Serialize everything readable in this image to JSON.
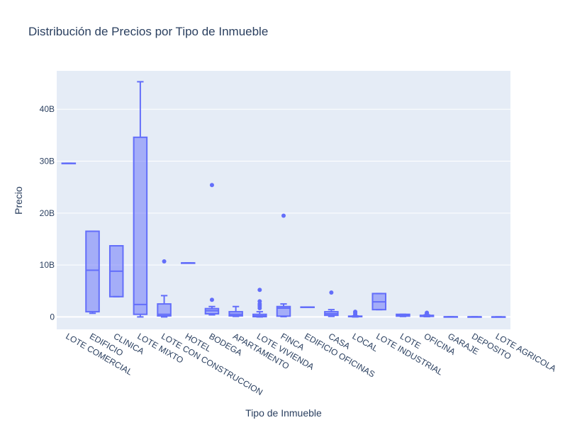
{
  "chart_data": {
    "type": "box",
    "title": "Distribución de Precios por Tipo de Inmueble",
    "xlabel": "Tipo de Inmueble",
    "ylabel": "Precio",
    "ylim": [
      -2400000000,
      47400000000
    ],
    "y_ticks": [
      {
        "value": 0,
        "label": "0"
      },
      {
        "value": 10000000000,
        "label": "10B"
      },
      {
        "value": 20000000000,
        "label": "20B"
      },
      {
        "value": 30000000000,
        "label": "30B"
      },
      {
        "value": 40000000000,
        "label": "40B"
      }
    ],
    "grid": true,
    "colors": {
      "box": "#636efa",
      "fill": "rgba(99,110,250,0.5)",
      "plot_bg": "#e5ecf6",
      "grid": "#ffffff"
    },
    "categories": [
      "LOTE COMERCIAL",
      "EDIFICIO",
      "CLINICA",
      "LOTE MIXTO",
      "LOTE CON CONSTRUCCION",
      "HOTEL",
      "BODEGA",
      "APARTAMENTO",
      "LOTE VIVIENDA",
      "FINCA",
      "EDIFICIO OFICINAS",
      "CASA",
      "LOCAL",
      "LOTE INDUSTRIAL",
      "LOTE",
      "OFICINA",
      "GARAJE",
      "DEPOSITO",
      "LOTE AGRICOLA"
    ],
    "boxes": [
      {
        "name": "LOTE COMERCIAL",
        "min": 29600000000,
        "q1": 29600000000,
        "median": 29600000000,
        "q3": 29600000000,
        "max": 29600000000,
        "outliers": []
      },
      {
        "name": "EDIFICIO",
        "min": 700000000,
        "q1": 1000000000,
        "median": 9000000000,
        "q3": 16500000000,
        "max": 16500000000,
        "outliers": []
      },
      {
        "name": "CLINICA",
        "min": 3900000000,
        "q1": 3900000000,
        "median": 8800000000,
        "q3": 13700000000,
        "max": 13700000000,
        "outliers": []
      },
      {
        "name": "LOTE MIXTO",
        "min": 0,
        "q1": 500000000,
        "median": 2400000000,
        "q3": 34600000000,
        "max": 45300000000,
        "outliers": []
      },
      {
        "name": "LOTE CON CONSTRUCCION",
        "min": 0,
        "q1": 200000000,
        "median": 500000000,
        "q3": 2500000000,
        "max": 4100000000,
        "outliers": [
          10700000000
        ]
      },
      {
        "name": "HOTEL",
        "min": 10400000000,
        "q1": 10400000000,
        "median": 10400000000,
        "q3": 10400000000,
        "max": 10400000000,
        "outliers": []
      },
      {
        "name": "BODEGA",
        "min": 400000000,
        "q1": 600000000,
        "median": 1200000000,
        "q3": 1600000000,
        "max": 2000000000,
        "outliers": [
          3300000000,
          25400000000
        ]
      },
      {
        "name": "APARTAMENTO",
        "min": 100000000,
        "q1": 200000000,
        "median": 500000000,
        "q3": 1000000000,
        "max": 2000000000,
        "outliers": []
      },
      {
        "name": "LOTE VIVIENDA",
        "min": 0,
        "q1": 50000000,
        "median": 200000000,
        "q3": 500000000,
        "max": 1000000000,
        "outliers": [
          1700000000,
          2100000000,
          2500000000,
          3000000000,
          5200000000
        ]
      },
      {
        "name": "FINCA",
        "min": 50000000,
        "q1": 150000000,
        "median": 1700000000,
        "q3": 2000000000,
        "max": 2500000000,
        "outliers": [
          19500000000
        ]
      },
      {
        "name": "EDIFICIO OFICINAS",
        "min": 1900000000,
        "q1": 1900000000,
        "median": 1900000000,
        "q3": 1900000000,
        "max": 1900000000,
        "outliers": []
      },
      {
        "name": "CASA",
        "min": 100000000,
        "q1": 300000000,
        "median": 600000000,
        "q3": 1000000000,
        "max": 1400000000,
        "outliers": [
          4700000000
        ]
      },
      {
        "name": "LOCAL",
        "min": 0,
        "q1": 50000000,
        "median": 100000000,
        "q3": 150000000,
        "max": 200000000,
        "outliers": [
          400000000,
          600000000,
          900000000,
          1000000000
        ]
      },
      {
        "name": "LOTE INDUSTRIAL",
        "min": 1400000000,
        "q1": 1400000000,
        "median": 2900000000,
        "q3": 4500000000,
        "max": 4500000000,
        "outliers": []
      },
      {
        "name": "LOTE",
        "min": 80000000,
        "q1": 150000000,
        "median": 300000000,
        "q3": 500000000,
        "max": 500000000,
        "outliers": []
      },
      {
        "name": "OFICINA",
        "min": 50000000,
        "q1": 100000000,
        "median": 200000000,
        "q3": 300000000,
        "max": 400000000,
        "outliers": [
          500000000,
          700000000,
          800000000
        ]
      },
      {
        "name": "GARAJE",
        "min": 30000000,
        "q1": 30000000,
        "median": 30000000,
        "q3": 30000000,
        "max": 30000000,
        "outliers": []
      },
      {
        "name": "DEPOSITO",
        "min": 20000000,
        "q1": 20000000,
        "median": 20000000,
        "q3": 20000000,
        "max": 20000000,
        "outliers": []
      },
      {
        "name": "LOTE AGRICOLA",
        "min": 10000000,
        "q1": 10000000,
        "median": 10000000,
        "q3": 10000000,
        "max": 10000000,
        "outliers": []
      }
    ]
  }
}
